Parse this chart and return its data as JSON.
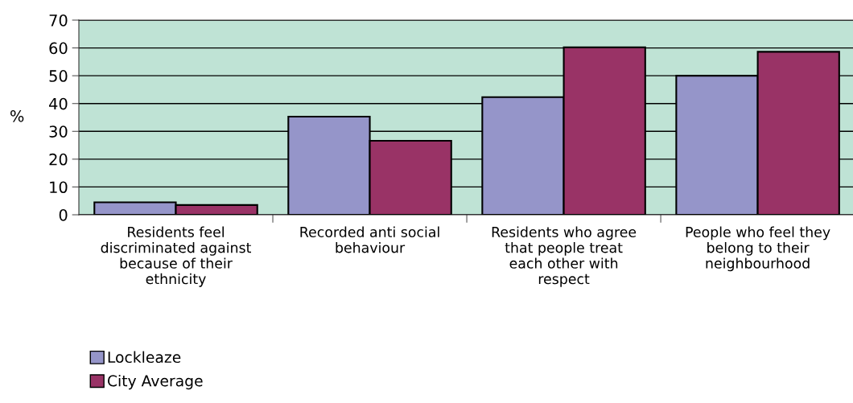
{
  "chart_data": {
    "type": "bar",
    "ylabel": "%",
    "categories": [
      "Residents feel\ndiscriminated against\nbecause of their\nethnicity",
      "Recorded anti social\nbehaviour",
      "Residents who agree\nthat people treat\neach other with\nrespect",
      "People who feel they\nbelong to their\nneighbourhood"
    ],
    "series": [
      {
        "name": "Lockleaze",
        "color": "#9595c9",
        "values": [
          4.5,
          35.3,
          42.3,
          50
        ]
      },
      {
        "name": "City Average",
        "color": "#993366",
        "values": [
          3.5,
          26.6,
          60.2,
          58.6
        ]
      }
    ],
    "ylim": [
      0,
      70
    ],
    "yticks": [
      0,
      10,
      20,
      30,
      40,
      50,
      60,
      70
    ],
    "grid": "y",
    "legend": "bottom left"
  }
}
